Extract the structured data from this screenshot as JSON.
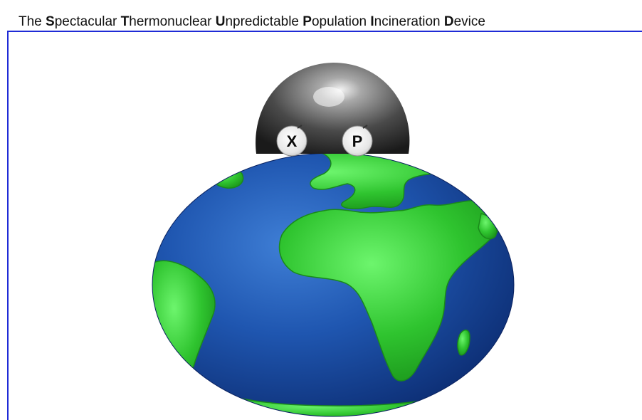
{
  "title": {
    "words": [
      {
        "initial": "",
        "rest": "The "
      },
      {
        "initial": "S",
        "rest": "pectacular "
      },
      {
        "initial": "T",
        "rest": "hermonuclear "
      },
      {
        "initial": "U",
        "rest": "npredictable "
      },
      {
        "initial": "P",
        "rest": "opulation "
      },
      {
        "initial": "I",
        "rest": "ncineration "
      },
      {
        "initial": "D",
        "rest": "evice"
      }
    ]
  },
  "device": {
    "dial_left": "X",
    "dial_right": "P"
  },
  "colors": {
    "border": "#1f2bd6",
    "ocean": "#1d4fa8",
    "land": "#33cc33",
    "sphere": "#555555"
  },
  "icons": {
    "globe": "earth-globe-icon",
    "bomb": "bomb-sphere-icon"
  }
}
